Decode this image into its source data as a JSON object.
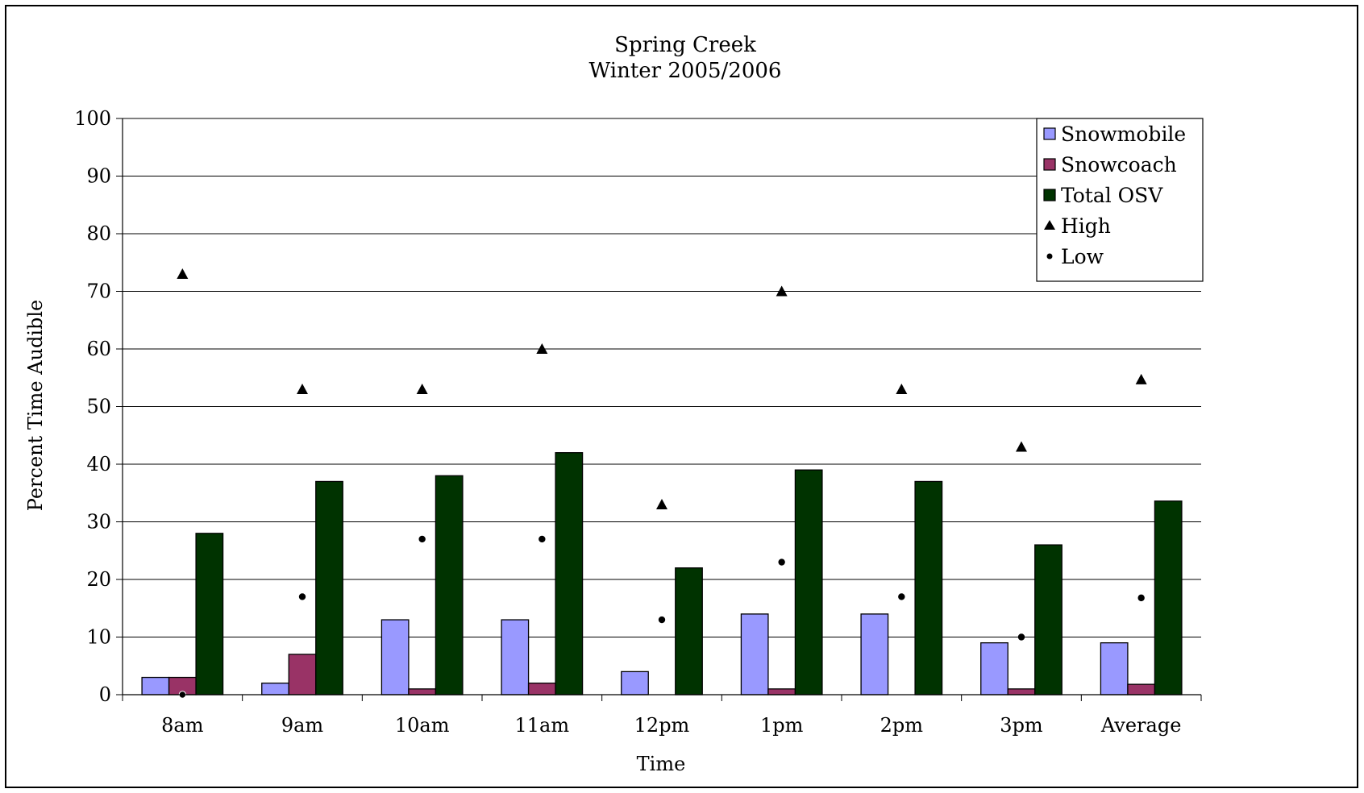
{
  "chart_data": {
    "type": "bar",
    "title": "Spring Creek",
    "subtitle": "Winter 2005/2006",
    "xlabel": "Time",
    "ylabel": "Percent Time Audible",
    "ylim": [
      0,
      100
    ],
    "yticks": [
      0,
      10,
      20,
      30,
      40,
      50,
      60,
      70,
      80,
      90,
      100
    ],
    "grid": true,
    "legend_position": "top-right",
    "categories": [
      "8am",
      "9am",
      "10am",
      "11am",
      "12pm",
      "1pm",
      "2pm",
      "3pm",
      "Average"
    ],
    "series": [
      {
        "name": "Snowmobile",
        "kind": "bar",
        "color": "#9999ff",
        "values": [
          3,
          2,
          13,
          13,
          4,
          14,
          14,
          9,
          9
        ]
      },
      {
        "name": "Snowcoach",
        "kind": "bar",
        "color": "#993366",
        "values": [
          3,
          7,
          1,
          2,
          0,
          1,
          0,
          1,
          1.8
        ]
      },
      {
        "name": "Total OSV",
        "kind": "bar",
        "color": "#003300",
        "values": [
          28,
          37,
          38,
          42,
          22,
          39,
          37,
          26,
          33.6
        ]
      },
      {
        "name": "High",
        "kind": "marker",
        "marker": "triangle",
        "color": "#000000",
        "values": [
          73,
          53,
          53,
          60,
          33,
          70,
          53,
          43,
          54.7
        ]
      },
      {
        "name": "Low",
        "kind": "marker",
        "marker": "circle",
        "color": "#000000",
        "values": [
          0,
          17,
          27,
          27,
          13,
          23,
          17,
          10,
          16.8
        ]
      }
    ]
  }
}
